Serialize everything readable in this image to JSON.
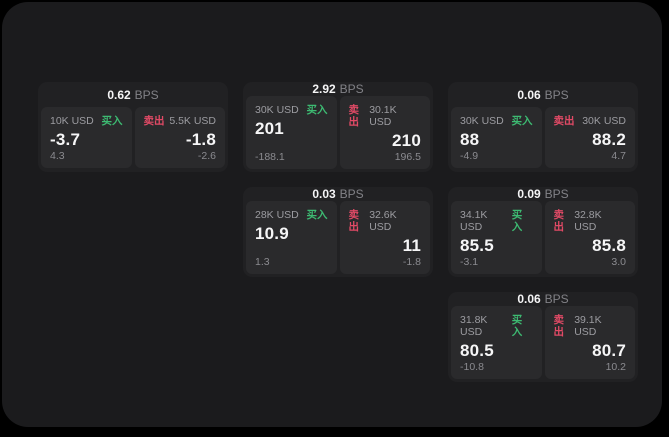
{
  "labels": {
    "bps_unit": "BPS",
    "buy": "买入",
    "sell": "卖出"
  },
  "colors": {
    "buy_green": "#3dba72",
    "sell_red": "#e24a66",
    "app_background": "#1b1b1d",
    "card_background": "#212123",
    "panel_background": "#2a2a2c"
  },
  "cards": [
    {
      "bps": "0.62",
      "buy": {
        "size": "10K USD",
        "price": "-3.7",
        "sub": "4.3"
      },
      "sell": {
        "size": "5.5K USD",
        "price": "-1.8",
        "sub": "-2.6"
      }
    },
    {
      "bps": "2.92",
      "buy": {
        "size": "30K USD",
        "price": "201",
        "sub": "-188.1"
      },
      "sell": {
        "size": "30.1K USD",
        "price": "210",
        "sub": "196.5"
      }
    },
    {
      "bps": "0.06",
      "buy": {
        "size": "30K USD",
        "price": "88",
        "sub": "-4.9"
      },
      "sell": {
        "size": "30K USD",
        "price": "88.2",
        "sub": "4.7"
      }
    },
    {
      "bps": "0.03",
      "buy": {
        "size": "28K USD",
        "price": "10.9",
        "sub": "1.3"
      },
      "sell": {
        "size": "32.6K USD",
        "price": "11",
        "sub": "-1.8"
      }
    },
    {
      "bps": "0.09",
      "buy": {
        "size": "34.1K USD",
        "price": "85.5",
        "sub": "-3.1"
      },
      "sell": {
        "size": "32.8K USD",
        "price": "85.8",
        "sub": "3.0"
      }
    },
    {
      "bps": "0.06",
      "buy": {
        "size": "31.8K USD",
        "price": "80.5",
        "sub": "-10.8"
      },
      "sell": {
        "size": "39.1K USD",
        "price": "80.7",
        "sub": "10.2"
      }
    }
  ]
}
